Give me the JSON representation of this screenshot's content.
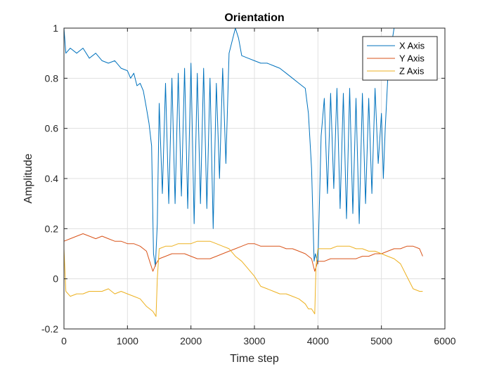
{
  "chart_data": {
    "type": "line",
    "title": "Orientation",
    "xlabel": "Time step",
    "ylabel": "Amplitude",
    "xlim": [
      0,
      6000
    ],
    "ylim": [
      -0.2,
      1
    ],
    "xticks": [
      0,
      1000,
      2000,
      3000,
      4000,
      5000,
      6000
    ],
    "xtick_labels": [
      "0",
      "1000",
      "2000",
      "3000",
      "4000",
      "5000",
      "6000"
    ],
    "yticks": [
      -0.2,
      0,
      0.2,
      0.4,
      0.6,
      0.8,
      1
    ],
    "ytick_labels": [
      "-0.2",
      "0",
      "0.2",
      "0.4",
      "0.6",
      "0.8",
      "1"
    ],
    "grid": true,
    "legend_position": "top-right",
    "colors": {
      "x": "#0072BD",
      "y": "#D95319",
      "z": "#EDB120"
    },
    "series": [
      {
        "name": "X Axis",
        "color": "#0072BD",
        "x": [
          0,
          30,
          100,
          200,
          300,
          400,
          500,
          600,
          700,
          800,
          900,
          1000,
          1050,
          1100,
          1150,
          1200,
          1250,
          1300,
          1340,
          1380,
          1410,
          1440,
          1470,
          1500,
          1550,
          1600,
          1650,
          1700,
          1750,
          1800,
          1850,
          1900,
          1950,
          2000,
          2050,
          2100,
          2150,
          2200,
          2250,
          2300,
          2350,
          2400,
          2450,
          2500,
          2550,
          2600,
          2700,
          2750,
          2800,
          2900,
          3000,
          3100,
          3200,
          3300,
          3400,
          3500,
          3600,
          3700,
          3800,
          3850,
          3900,
          3940,
          3960,
          4000,
          4050,
          4100,
          4150,
          4200,
          4250,
          4300,
          4350,
          4400,
          4450,
          4500,
          4550,
          4600,
          4650,
          4700,
          4750,
          4800,
          4850,
          4900,
          4950,
          5000,
          5030,
          5060,
          5100,
          5150,
          5200
        ],
        "y": [
          1.0,
          0.9,
          0.92,
          0.9,
          0.92,
          0.88,
          0.9,
          0.87,
          0.86,
          0.87,
          0.84,
          0.83,
          0.8,
          0.82,
          0.77,
          0.78,
          0.75,
          0.68,
          0.62,
          0.53,
          0.1,
          0.05,
          0.22,
          0.7,
          0.34,
          0.78,
          0.3,
          0.8,
          0.3,
          0.82,
          0.33,
          0.84,
          0.28,
          0.86,
          0.22,
          0.82,
          0.3,
          0.84,
          0.28,
          0.8,
          0.2,
          0.78,
          0.4,
          0.84,
          0.46,
          0.9,
          1.0,
          0.96,
          0.89,
          0.88,
          0.87,
          0.86,
          0.86,
          0.85,
          0.84,
          0.82,
          0.8,
          0.78,
          0.76,
          0.66,
          0.44,
          0.07,
          0.1,
          0.06,
          0.57,
          0.72,
          0.34,
          0.74,
          0.36,
          0.76,
          0.28,
          0.74,
          0.24,
          0.76,
          0.26,
          0.72,
          0.22,
          0.74,
          0.3,
          0.72,
          0.34,
          0.76,
          0.46,
          0.66,
          0.4,
          0.6,
          0.8,
          0.92,
          1.0
        ]
      },
      {
        "name": "Y Axis",
        "color": "#D95319",
        "x": [
          0,
          100,
          200,
          300,
          400,
          500,
          600,
          700,
          800,
          900,
          1000,
          1100,
          1200,
          1300,
          1350,
          1400,
          1450,
          1500,
          1600,
          1700,
          1800,
          1900,
          2000,
          2100,
          2200,
          2300,
          2400,
          2500,
          2600,
          2700,
          2800,
          2900,
          3000,
          3100,
          3200,
          3300,
          3400,
          3500,
          3600,
          3700,
          3800,
          3900,
          3950,
          4000,
          4100,
          4200,
          4300,
          4400,
          4500,
          4600,
          4700,
          4800,
          4900,
          5000,
          5100,
          5200,
          5300,
          5400,
          5500,
          5600,
          5650
        ],
        "y": [
          0.15,
          0.16,
          0.17,
          0.18,
          0.17,
          0.16,
          0.17,
          0.16,
          0.15,
          0.15,
          0.14,
          0.14,
          0.13,
          0.11,
          0.07,
          0.03,
          0.06,
          0.08,
          0.09,
          0.1,
          0.1,
          0.1,
          0.09,
          0.08,
          0.08,
          0.08,
          0.09,
          0.1,
          0.11,
          0.12,
          0.13,
          0.14,
          0.14,
          0.13,
          0.13,
          0.13,
          0.13,
          0.12,
          0.12,
          0.11,
          0.1,
          0.08,
          0.03,
          0.07,
          0.07,
          0.08,
          0.08,
          0.08,
          0.08,
          0.08,
          0.09,
          0.09,
          0.1,
          0.1,
          0.11,
          0.12,
          0.12,
          0.13,
          0.13,
          0.12,
          0.09
        ]
      },
      {
        "name": "Z Axis",
        "color": "#EDB120",
        "x": [
          0,
          30,
          100,
          200,
          300,
          400,
          500,
          600,
          700,
          800,
          900,
          1000,
          1100,
          1200,
          1300,
          1400,
          1450,
          1470,
          1500,
          1600,
          1700,
          1800,
          1900,
          2000,
          2100,
          2200,
          2300,
          2400,
          2500,
          2600,
          2700,
          2800,
          2900,
          3000,
          3100,
          3200,
          3300,
          3400,
          3500,
          3600,
          3700,
          3800,
          3850,
          3900,
          3950,
          3970,
          4000,
          4100,
          4200,
          4300,
          4400,
          4500,
          4600,
          4700,
          4800,
          4900,
          5000,
          5100,
          5200,
          5300,
          5400,
          5500,
          5600,
          5650
        ],
        "y": [
          0.12,
          -0.05,
          -0.07,
          -0.06,
          -0.06,
          -0.05,
          -0.05,
          -0.05,
          -0.04,
          -0.06,
          -0.05,
          -0.06,
          -0.07,
          -0.08,
          -0.11,
          -0.13,
          -0.15,
          0.0,
          0.12,
          0.13,
          0.13,
          0.14,
          0.14,
          0.14,
          0.15,
          0.15,
          0.15,
          0.14,
          0.13,
          0.12,
          0.09,
          0.07,
          0.04,
          0.01,
          -0.03,
          -0.04,
          -0.05,
          -0.06,
          -0.06,
          -0.07,
          -0.08,
          -0.1,
          -0.12,
          -0.12,
          -0.14,
          0.05,
          0.12,
          0.12,
          0.12,
          0.13,
          0.13,
          0.13,
          0.12,
          0.12,
          0.11,
          0.11,
          0.1,
          0.09,
          0.08,
          0.06,
          0.01,
          -0.04,
          -0.05,
          -0.05
        ]
      }
    ]
  }
}
